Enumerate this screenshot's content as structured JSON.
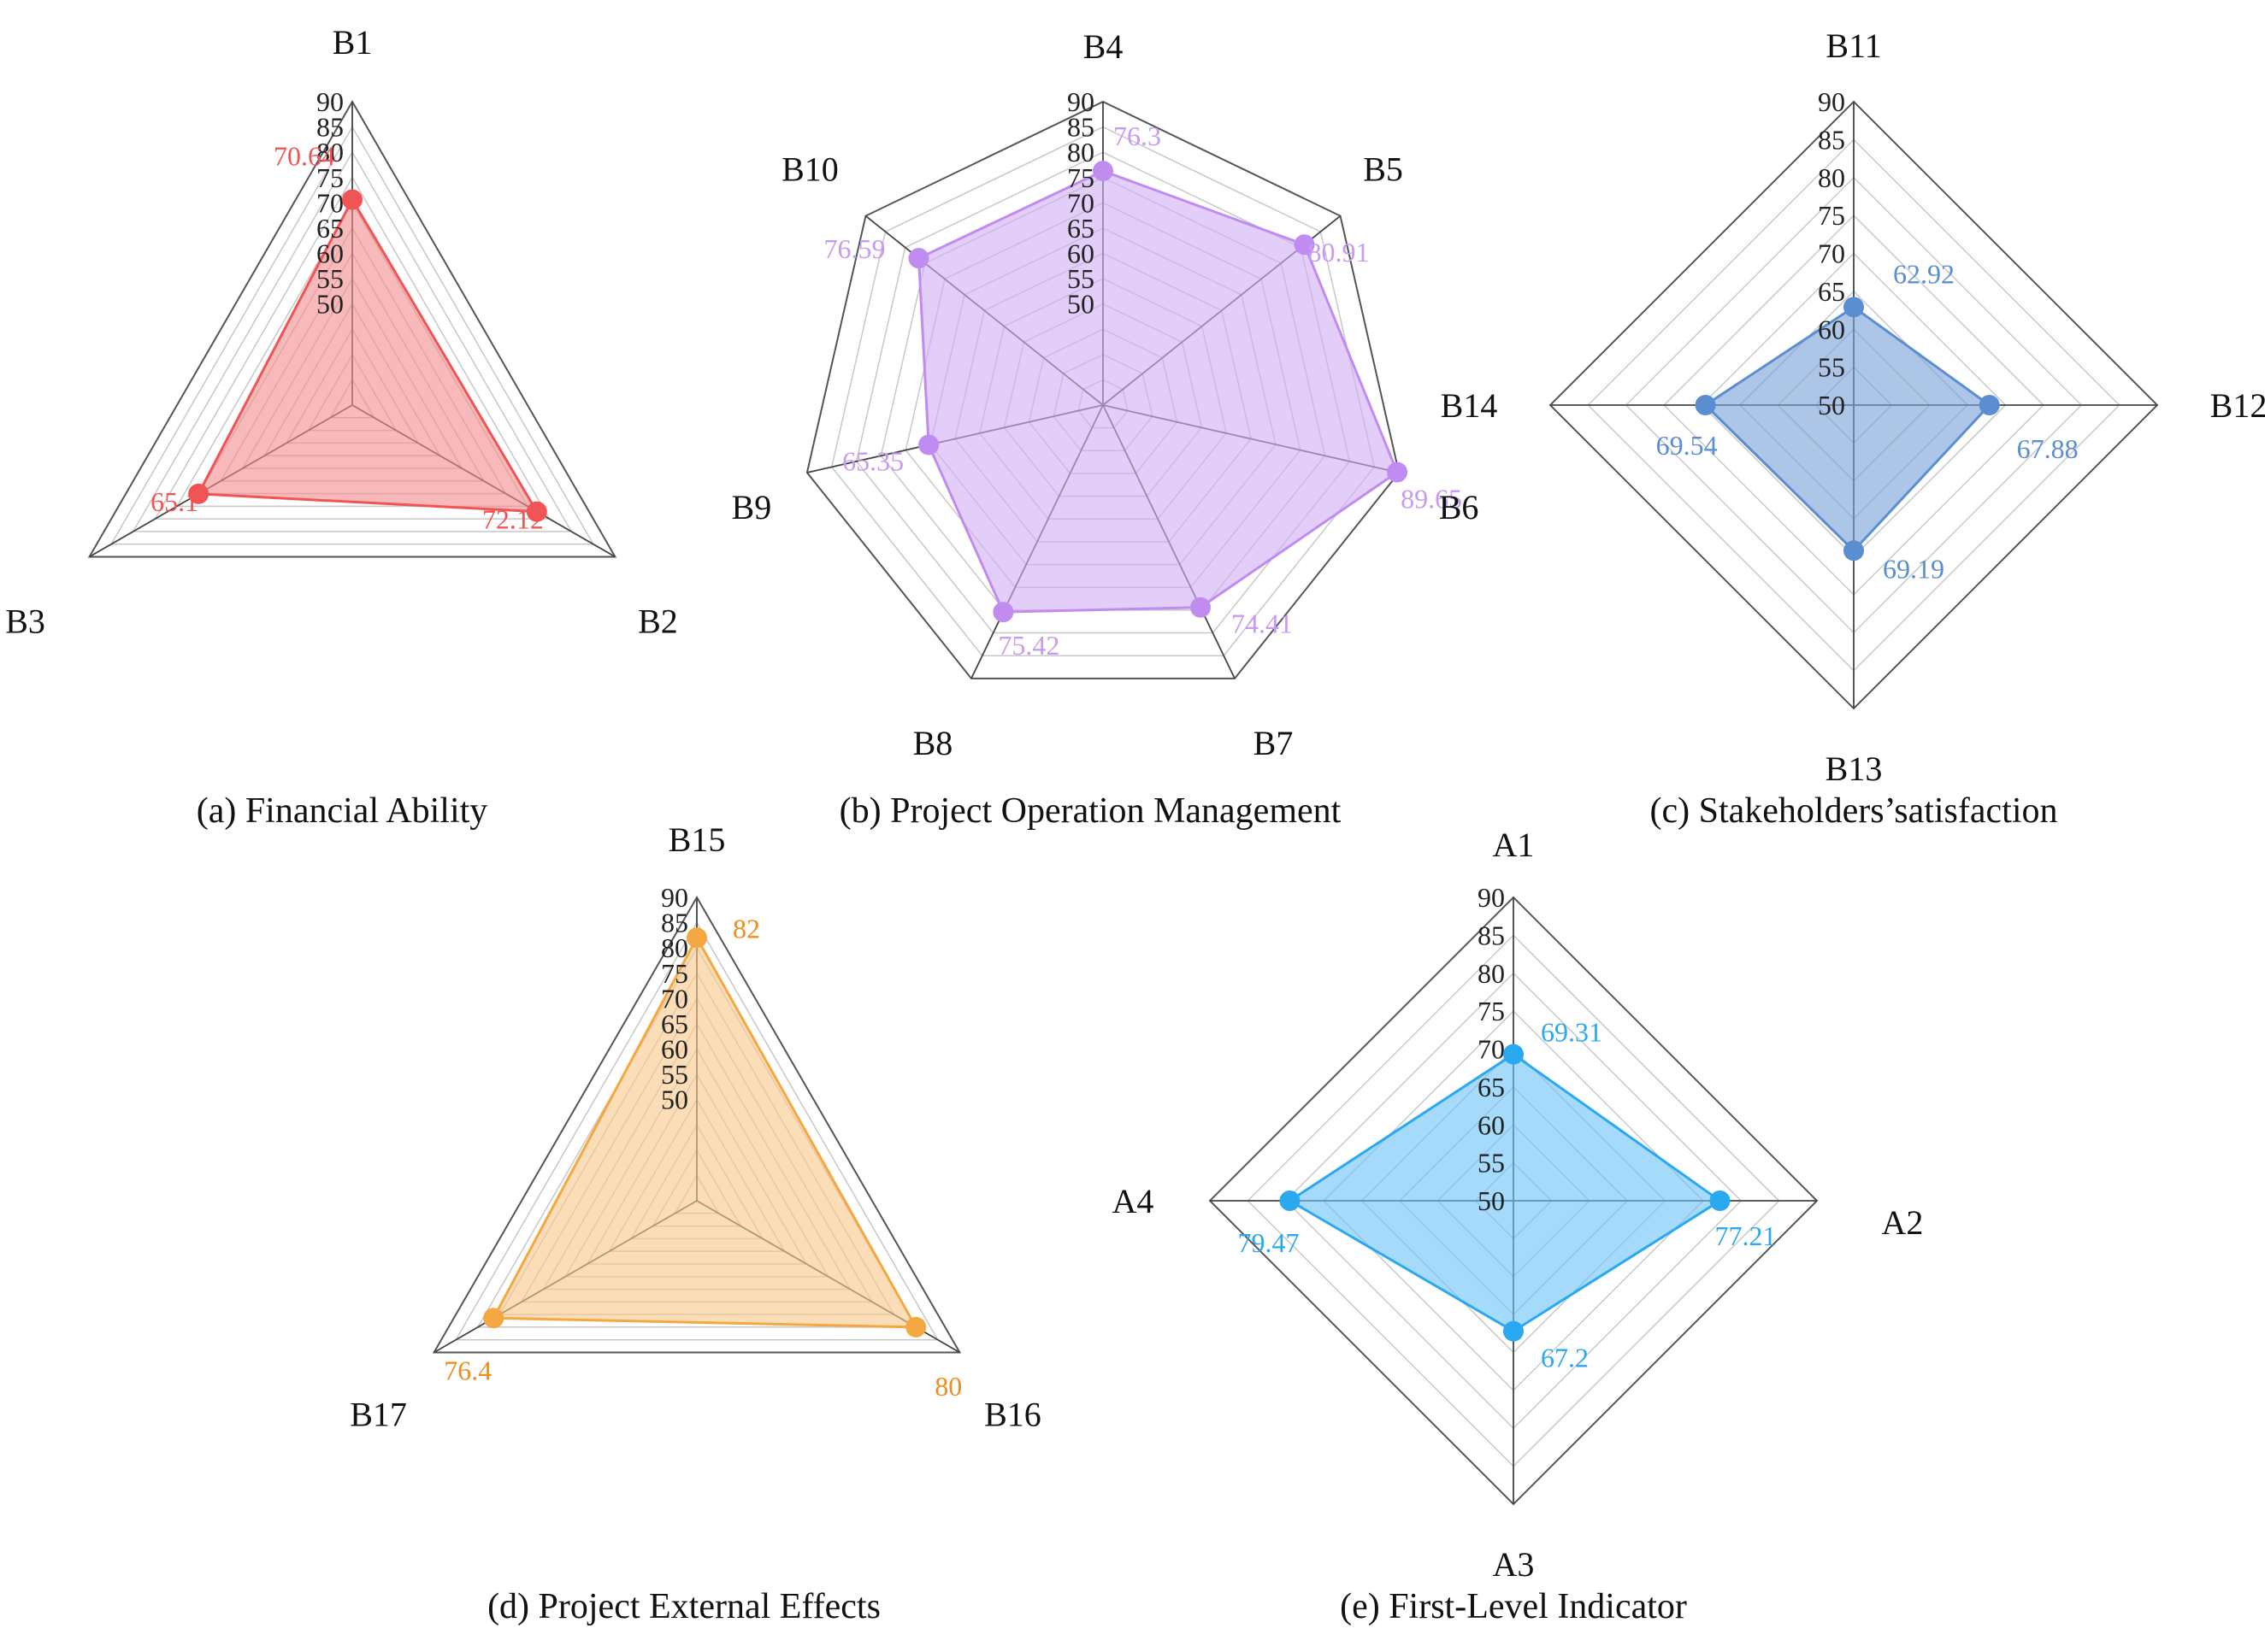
{
  "chart_data": [
    {
      "type": "radar",
      "caption": "(a) Financial Ability",
      "categories": [
        "B1",
        "B2",
        "B3"
      ],
      "values": [
        70.64,
        72.12,
        65.1
      ],
      "value_labels": [
        "70.64",
        "72.12",
        "65.1"
      ],
      "ticks": [
        "50",
        "55",
        "60",
        "65",
        "70",
        "75",
        "80",
        "85",
        "90"
      ],
      "rlim": [
        30,
        90
      ],
      "fill_color": "#f28e8e",
      "line_color": "#f05454",
      "label_color": "#f05454"
    },
    {
      "type": "radar",
      "caption": "(b) Project Operation Management",
      "categories": [
        "B4",
        "B5",
        "B6",
        "B7",
        "B8",
        "B9",
        "B10"
      ],
      "values": [
        76.3,
        80.91,
        89.65,
        74.41,
        75.42,
        65.35,
        76.59
      ],
      "value_labels": [
        "76.3",
        "80.91",
        "89.65",
        "74.41",
        "75.42",
        "65.35",
        "76.59"
      ],
      "ticks": [
        "50",
        "55",
        "60",
        "65",
        "70",
        "75",
        "80",
        "85",
        "90"
      ],
      "rlim": [
        30,
        90
      ],
      "fill_color": "#d2b0f5",
      "line_color": "#c08cf0",
      "label_color": "#c89af2"
    },
    {
      "type": "radar",
      "caption": "(c) Stakeholders’satisfaction",
      "categories": [
        "B11",
        "B12",
        "B13",
        "B14"
      ],
      "values": [
        62.92,
        67.88,
        69.19,
        69.54
      ],
      "value_labels": [
        "62.92",
        "67.88",
        "69.19",
        "69.54"
      ],
      "ticks": [
        "50",
        "55",
        "60",
        "65",
        "70",
        "75",
        "80",
        "85",
        "90"
      ],
      "rlim": [
        50,
        90
      ],
      "fill_color": "#7ba3d8",
      "line_color": "#5b8ed0",
      "label_color": "#5b8ed0"
    },
    {
      "type": "radar",
      "caption": "(d) Project External Effects",
      "categories": [
        "B15",
        "B16",
        "B17"
      ],
      "values": [
        82,
        80,
        76.4
      ],
      "value_labels": [
        "82",
        "80",
        "76.4"
      ],
      "ticks": [
        "50",
        "55",
        "60",
        "65",
        "70",
        "75",
        "80",
        "85",
        "90"
      ],
      "rlim": [
        30,
        90
      ],
      "fill_color": "#f8c98d",
      "line_color": "#f5a742",
      "label_color": "#f08c1a"
    },
    {
      "type": "radar",
      "caption": "(e) First-Level Indicator",
      "categories": [
        "A1",
        "A2",
        "A3",
        "A4"
      ],
      "values": [
        69.31,
        77.21,
        67.2,
        79.47
      ],
      "value_labels": [
        "69.31",
        "77.21",
        "67.2",
        "79.47"
      ],
      "ticks": [
        "50",
        "55",
        "60",
        "65",
        "70",
        "75",
        "80",
        "85",
        "90"
      ],
      "rlim": [
        50,
        90
      ],
      "fill_color": "#6ec3f7",
      "line_color": "#2aa8f0",
      "label_color": "#2aa8f0"
    }
  ]
}
